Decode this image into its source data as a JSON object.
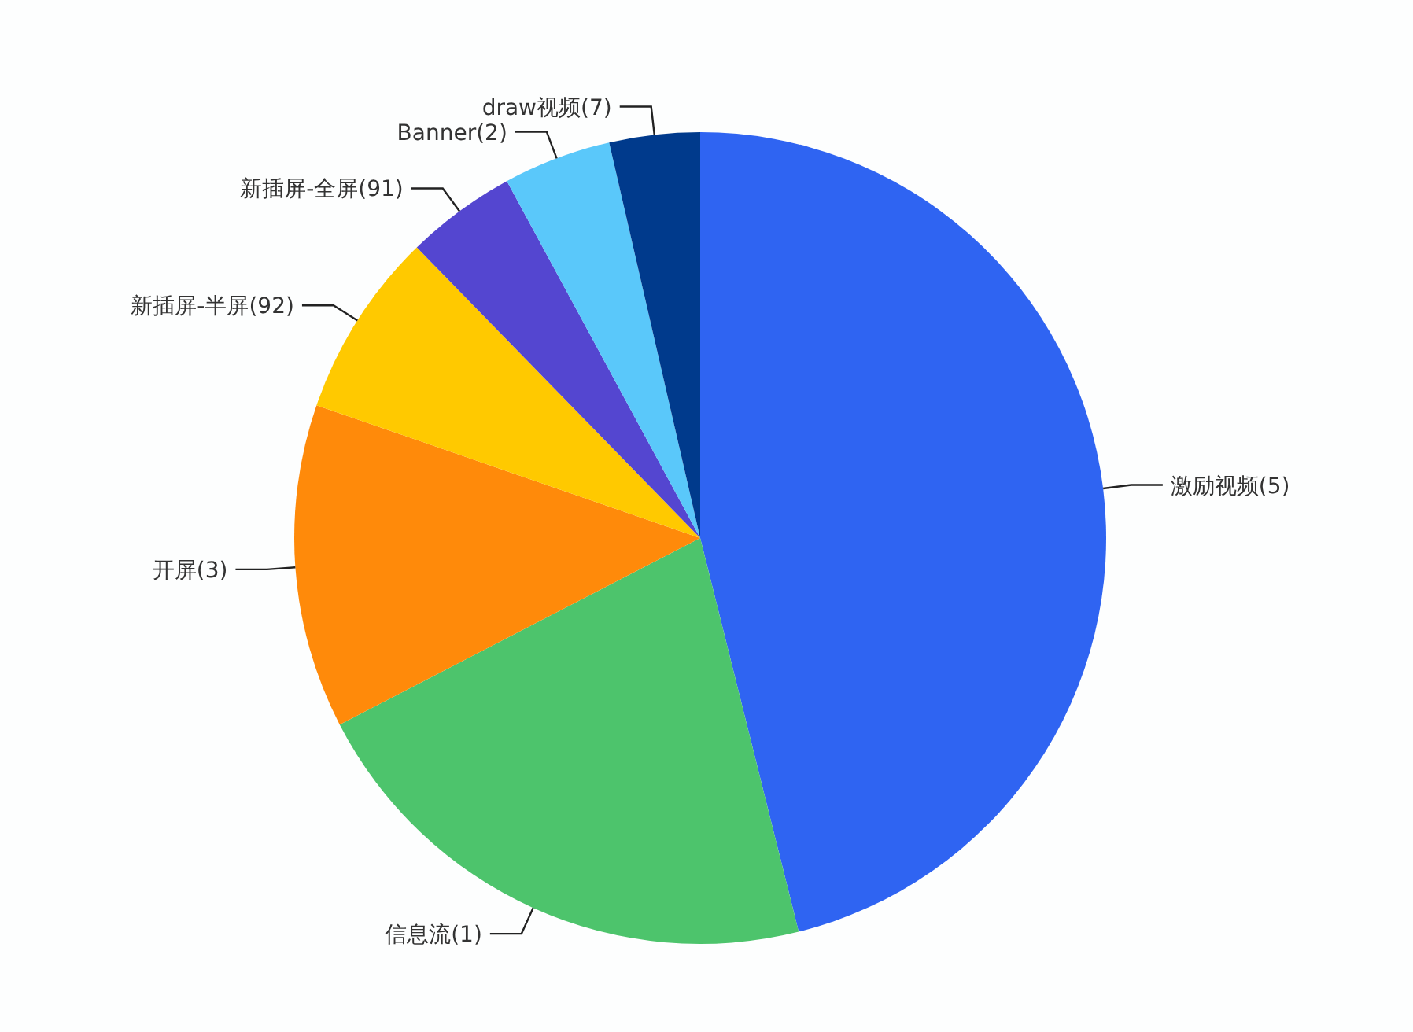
{
  "chart_data": {
    "type": "pie",
    "categories": [
      "激励视频(5)",
      "信息流(1)",
      "开屏(3)",
      "新插屏-半屏(92)",
      "新插屏-全屏(91)",
      "Banner(2)",
      "draw视频(7)"
    ],
    "values": [
      46.1,
      21.3,
      12.9,
      7.4,
      4.4,
      4.3,
      3.6
    ],
    "colors": [
      "#2f64f2",
      "#4dc46c",
      "#ff8a0a",
      "#ffc900",
      "#5446d0",
      "#5ac8fa",
      "#003a8c"
    ]
  }
}
